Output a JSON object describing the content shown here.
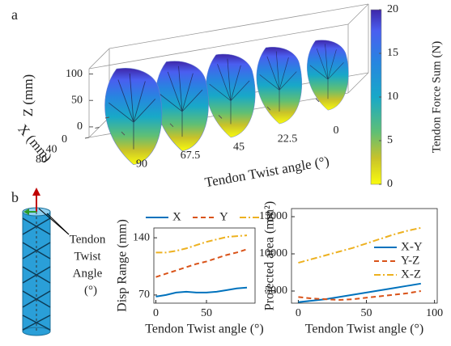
{
  "panel_labels": [
    "a",
    "b"
  ],
  "diagram": {
    "label_lines": [
      "Tendon",
      "Twist",
      "Angle",
      "(°)"
    ]
  },
  "chart_data": [
    {
      "type": "surface3d",
      "xlabel": "Tendon Twist angle (°)",
      "xlim": [
        105,
        -15
      ],
      "xticks": [
        90,
        67.5,
        45,
        22.5,
        0
      ],
      "ylabel": "X (mm)",
      "ylim": [
        0,
        80
      ],
      "yticks": [
        0,
        40,
        80
      ],
      "zlabel": "Z (mm)",
      "zlim": [
        -20,
        110
      ],
      "zticks": [
        0,
        50,
        100
      ],
      "colorbar": {
        "label": "Tendon Force Sum (N)",
        "lim": [
          0,
          20
        ],
        "ticks": [
          0,
          5,
          10,
          15,
          20
        ]
      }
    },
    {
      "type": "line",
      "xlabel": "Tendon Twist angle (°)",
      "ylabel": "Disp Range (mm)",
      "x": [
        0,
        10,
        20,
        30,
        40,
        50,
        60,
        70,
        80,
        90
      ],
      "xlim": [
        -2,
        98
      ],
      "xticks": [
        0,
        50
      ],
      "ylim": [
        60,
        152
      ],
      "yticks": [
        70,
        140
      ],
      "legend": "top",
      "series": [
        {
          "name": "X",
          "color": "#0072bd",
          "style": "solid",
          "values": [
            68,
            70,
            73,
            74,
            73,
            73,
            74,
            76,
            78,
            79
          ]
        },
        {
          "name": "Y",
          "color": "#d95319",
          "style": "dashed",
          "values": [
            92,
            96,
            100,
            104,
            108,
            111,
            115,
            119,
            122,
            126
          ]
        },
        {
          "name": "Z",
          "color": "#edb120",
          "style": "dashdot",
          "values": [
            122,
            122,
            124,
            127,
            131,
            135,
            138,
            141,
            142,
            143
          ]
        }
      ]
    },
    {
      "type": "line",
      "xlabel": "Tendon Twist angle (°)",
      "ylabel": "Projected area (mm²)",
      "x": [
        0,
        10,
        20,
        30,
        40,
        50,
        60,
        70,
        80,
        90
      ],
      "xlim": [
        -5,
        102
      ],
      "xticks": [
        0,
        50,
        100
      ],
      "ylim": [
        3370,
        16090
      ],
      "yticks": [
        5000,
        10000,
        15000
      ],
      "legend": "right",
      "series": [
        {
          "name": "X-Y",
          "color": "#0072bd",
          "style": "solid",
          "values": [
            3500,
            3700,
            3900,
            4200,
            4500,
            4800,
            5100,
            5400,
            5700,
            6000
          ]
        },
        {
          "name": "Y-Z",
          "color": "#d95319",
          "style": "dashed",
          "values": [
            4200,
            4000,
            3900,
            3800,
            3900,
            4100,
            4300,
            4500,
            4700,
            5000
          ]
        },
        {
          "name": "X-Z",
          "color": "#edb120",
          "style": "dashdot",
          "values": [
            8800,
            9300,
            9800,
            10300,
            10800,
            11400,
            12000,
            12600,
            13100,
            13500
          ]
        }
      ]
    }
  ]
}
